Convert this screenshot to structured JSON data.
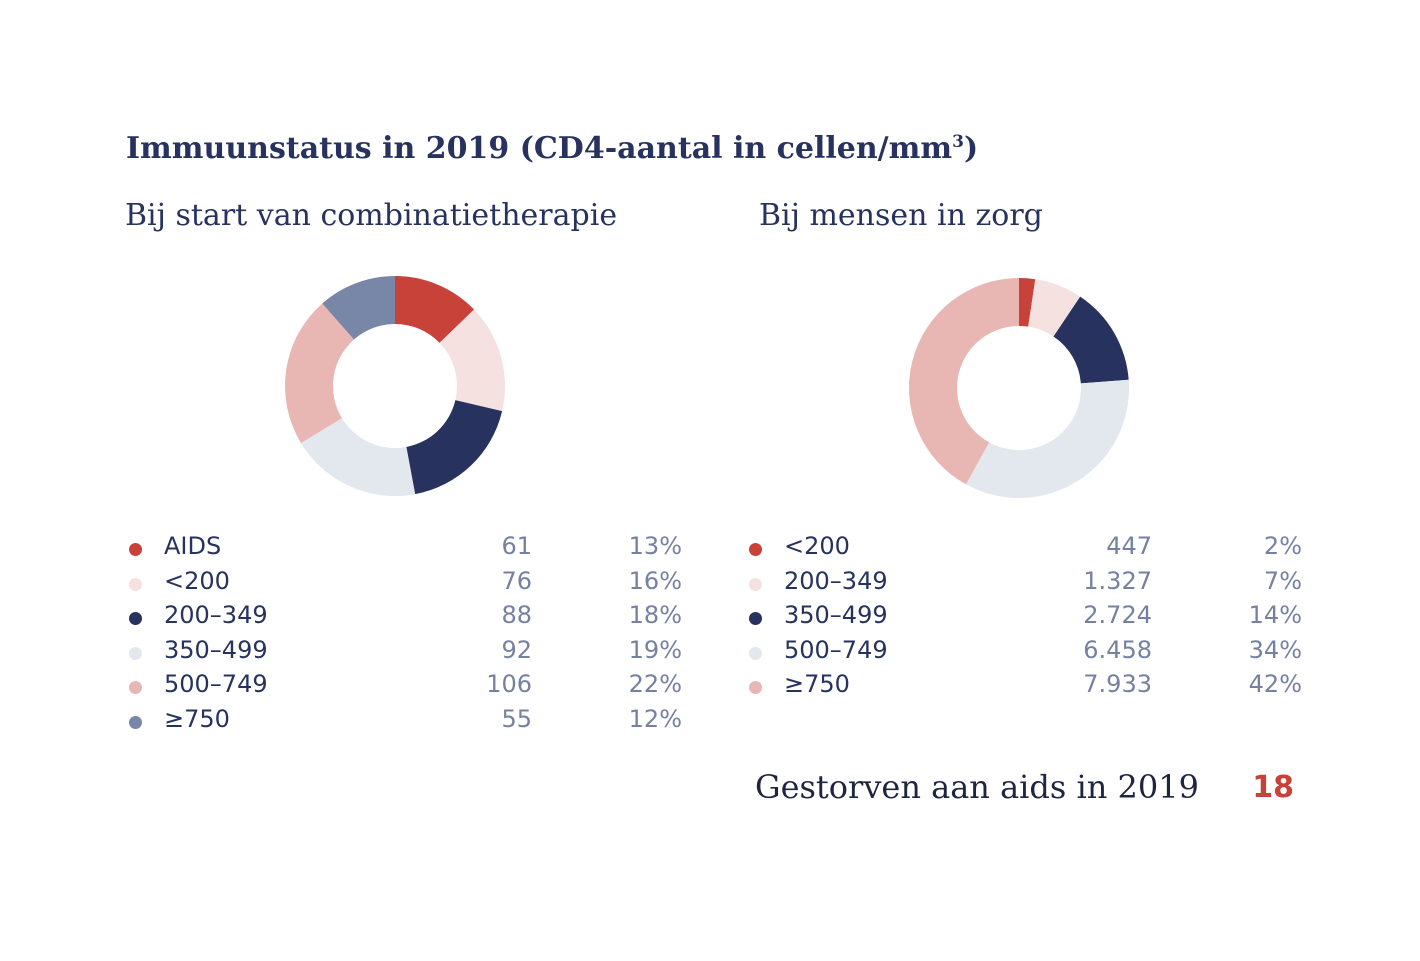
{
  "title": "Immuunstatus in 2019 (CD4-aantal in cellen/mm",
  "title_sup": "3",
  "title_close": ")",
  "colors": {
    "red": "#c8423a",
    "light_pink": "#f5e1df",
    "navy": "#27325f",
    "light_gray": "#e3e7ee",
    "pink": "#e8b7b3",
    "slate": "#7886a8",
    "value_text": "#7681a1"
  },
  "chart_data": [
    {
      "type": "pie",
      "subtitle": "Bij start van combinatietherapie",
      "categories": [
        "AIDS",
        "<200",
        "200–349",
        "350–499",
        "500–749",
        "≥750"
      ],
      "values": [
        61,
        76,
        88,
        92,
        106,
        55
      ],
      "values_display": [
        "61",
        "76",
        "88",
        "92",
        "106",
        "55"
      ],
      "percentages": [
        "13%",
        "16%",
        "18%",
        "19%",
        "22%",
        "12%"
      ],
      "colors": [
        "#c8423a",
        "#f5e1df",
        "#27325f",
        "#e3e7ee",
        "#e8b7b3",
        "#7886a8"
      ],
      "legend_position": "bottom"
    },
    {
      "type": "pie",
      "subtitle": "Bij mensen in zorg",
      "categories": [
        "<200",
        "200–349",
        "350–499",
        "500–749",
        "≥750"
      ],
      "values": [
        447,
        1327,
        2724,
        6458,
        7933
      ],
      "values_display": [
        "447",
        "1.327",
        "2.724",
        "6.458",
        "7.933"
      ],
      "percentages": [
        "2%",
        "7%",
        "14%",
        "34%",
        "42%"
      ],
      "colors": [
        "#c8423a",
        "#f5e1df",
        "#27325f",
        "#e3e7ee",
        "#e8b7b3"
      ],
      "legend_position": "bottom"
    }
  ],
  "deaths": {
    "label": "Gestorven aan aids in 2019",
    "value": "18"
  }
}
